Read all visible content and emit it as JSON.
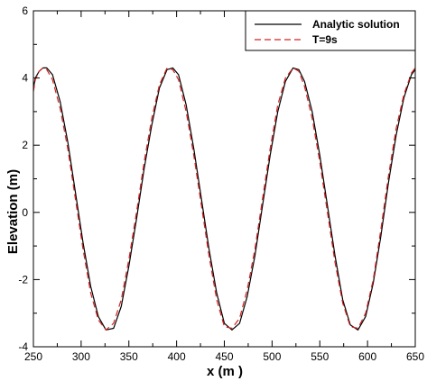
{
  "chart_data": {
    "type": "line",
    "title": "",
    "xlabel": "x (m )",
    "ylabel": "Elevation (m)",
    "xlim": [
      250,
      650
    ],
    "ylim": [
      -4,
      6
    ],
    "xticks": [
      250,
      300,
      350,
      400,
      450,
      500,
      550,
      600,
      650
    ],
    "yticks": [
      -4,
      -2,
      0,
      2,
      4,
      6
    ],
    "grid": false,
    "legend_position": "top-right",
    "series": [
      {
        "name": "Analytic solution",
        "color": "#000000",
        "dash": "solid",
        "x": [
          250,
          252,
          256,
          260,
          264,
          270,
          278,
          286,
          294,
          302,
          310,
          318,
          326,
          334,
          342,
          350,
          358,
          366,
          374,
          382,
          390,
          396,
          402,
          410,
          418,
          426,
          434,
          442,
          450,
          458,
          466,
          474,
          482,
          490,
          498,
          506,
          514,
          522,
          528,
          534,
          542,
          550,
          558,
          566,
          574,
          582,
          590,
          598,
          606,
          614,
          622,
          630,
          638,
          646,
          650
        ],
        "y": [
          3.7,
          4.0,
          4.2,
          4.3,
          4.3,
          4.1,
          3.3,
          2.1,
          0.6,
          -0.9,
          -2.2,
          -3.1,
          -3.5,
          -3.45,
          -2.8,
          -1.6,
          -0.2,
          1.3,
          2.6,
          3.7,
          4.25,
          4.3,
          4.1,
          3.2,
          1.9,
          0.4,
          -1.1,
          -2.4,
          -3.3,
          -3.5,
          -3.3,
          -2.5,
          -1.3,
          0.2,
          1.7,
          3.0,
          3.9,
          4.3,
          4.25,
          3.9,
          3.0,
          1.7,
          0.2,
          -1.3,
          -2.6,
          -3.35,
          -3.5,
          -3.1,
          -2.1,
          -0.7,
          0.9,
          2.3,
          3.4,
          4.1,
          4.25
        ]
      },
      {
        "name": "T=9s",
        "color": "#d42020",
        "dash": "dashed",
        "x": [
          250,
          252,
          256,
          260,
          264,
          270,
          278,
          286,
          294,
          302,
          310,
          318,
          326,
          334,
          342,
          350,
          358,
          366,
          374,
          382,
          390,
          396,
          402,
          410,
          418,
          426,
          434,
          442,
          450,
          458,
          466,
          474,
          482,
          490,
          498,
          506,
          514,
          522,
          528,
          534,
          542,
          550,
          558,
          566,
          574,
          582,
          590,
          598,
          606,
          614,
          622,
          630,
          638,
          646,
          650
        ],
        "y": [
          3.6,
          3.95,
          4.2,
          4.3,
          4.25,
          3.95,
          3.1,
          1.9,
          0.4,
          -1.1,
          -2.4,
          -3.2,
          -3.5,
          -3.3,
          -2.6,
          -1.4,
          0.0,
          1.5,
          2.8,
          3.8,
          4.3,
          4.25,
          3.95,
          3.0,
          1.7,
          0.2,
          -1.3,
          -2.6,
          -3.4,
          -3.45,
          -3.15,
          -2.3,
          -1.1,
          0.4,
          1.9,
          3.2,
          4.0,
          4.3,
          4.2,
          3.75,
          2.8,
          1.5,
          0.0,
          -1.5,
          -2.7,
          -3.4,
          -3.45,
          -3.0,
          -2.0,
          -0.5,
          1.1,
          2.5,
          3.5,
          4.15,
          4.3
        ]
      }
    ]
  }
}
